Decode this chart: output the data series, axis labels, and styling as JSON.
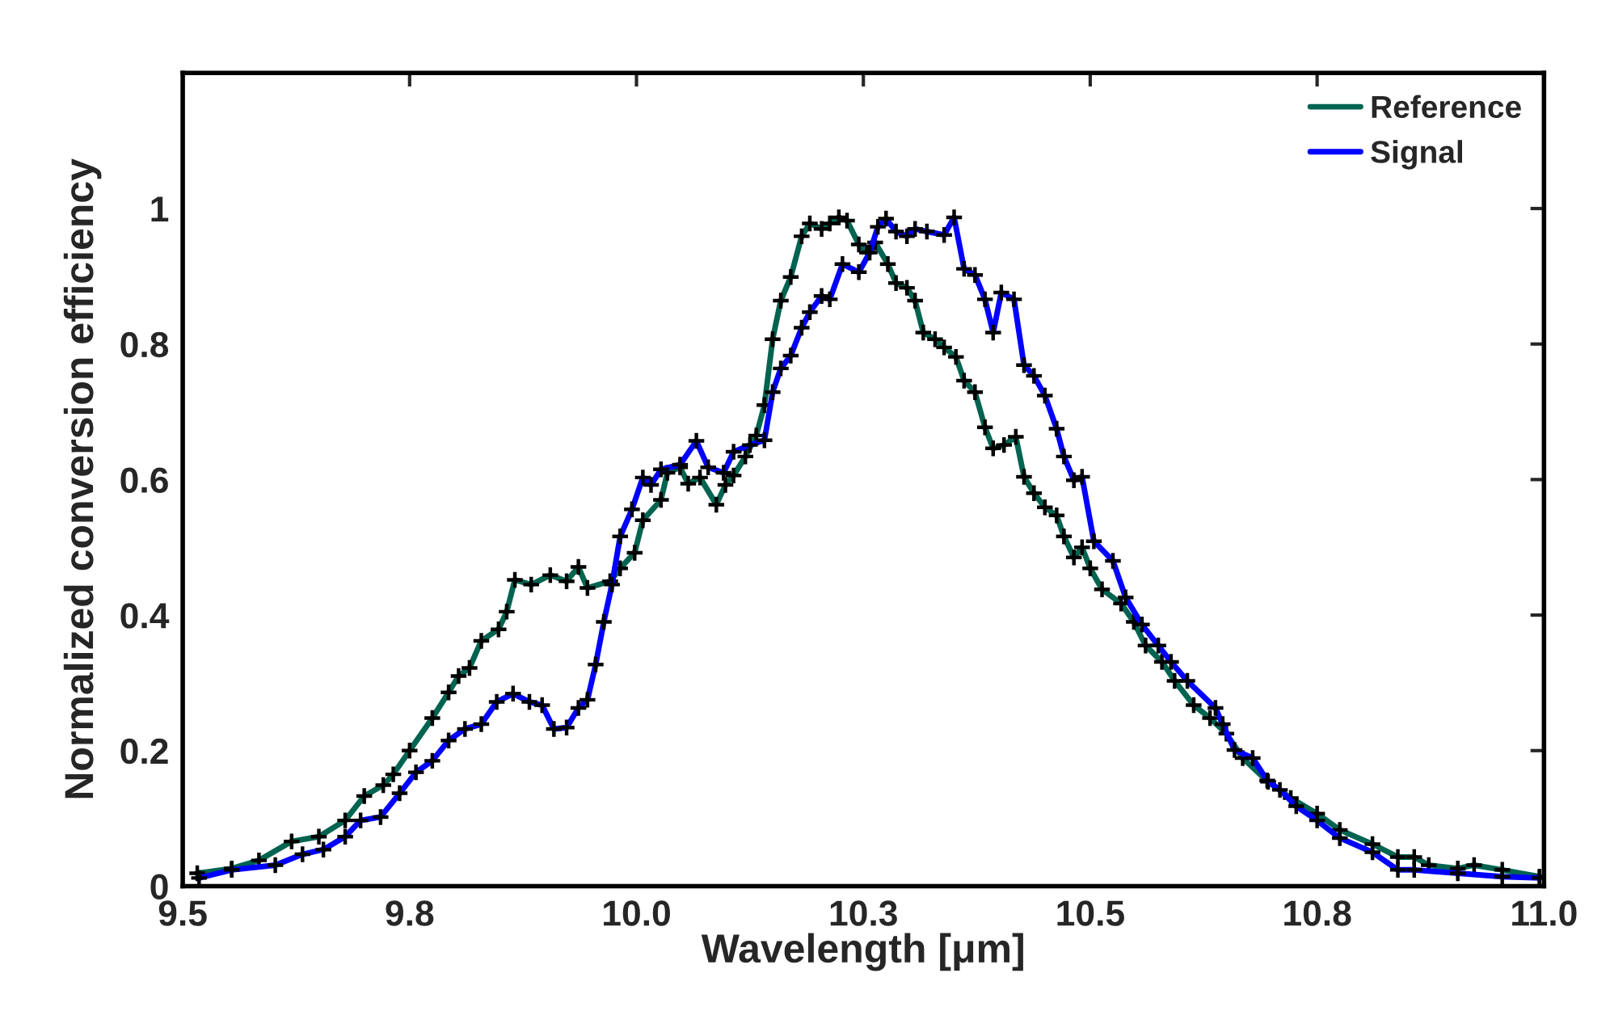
{
  "chart_data": {
    "type": "line",
    "xlabel": "Wavelength [μm]",
    "ylabel": "Normalized conversion efficiency",
    "xlim": [
      9.5,
      11.0
    ],
    "ylim": [
      0,
      1.2
    ],
    "xticks": [
      9.5,
      {
        "value": 9.75,
        "label": "9.8"
      },
      {
        "value": 10.0,
        "label": "10.0"
      },
      {
        "value": 10.25,
        "label": "10.3"
      },
      10.5,
      {
        "value": 10.75,
        "label": "10.8"
      },
      {
        "value": 11.0,
        "label": "11.0"
      }
    ],
    "yticks": [
      0,
      0.2,
      0.4,
      0.6,
      0.8,
      1
    ],
    "grid": false,
    "legend": "top right",
    "marker": "cross",
    "line_style": "solid",
    "series": [
      {
        "name": "Reference",
        "color": "#006450",
        "x": [
          9.516,
          9.554,
          9.584,
          9.62,
          9.65,
          9.679,
          9.7,
          9.721,
          9.732,
          9.75,
          9.775,
          9.793,
          9.804,
          9.816,
          9.829,
          9.848,
          9.857,
          9.866,
          9.884,
          9.905,
          9.923,
          9.936,
          9.946,
          9.971,
          9.982,
          9.998,
          10.007,
          10.027,
          10.034,
          10.048,
          10.057,
          10.07,
          10.088,
          10.098,
          10.107,
          10.12,
          10.132,
          10.141,
          10.15,
          10.159,
          10.17,
          10.182,
          10.191,
          10.204,
          10.213,
          10.223,
          10.232,
          10.245,
          10.254,
          10.263,
          10.277,
          10.286,
          10.298,
          10.307,
          10.316,
          10.329,
          10.339,
          10.352,
          10.361,
          10.373,
          10.384,
          10.393,
          10.405,
          10.418,
          10.427,
          10.438,
          10.45,
          10.463,
          10.471,
          10.482,
          10.491,
          10.5,
          10.513,
          10.534,
          10.548,
          10.561,
          10.579,
          10.593,
          10.614,
          10.632,
          10.65,
          10.668,
          10.696,
          10.721,
          10.75,
          10.775,
          10.811,
          10.839,
          10.857,
          10.873,
          10.905,
          10.923,
          10.954,
          10.995
        ],
        "values": [
          0.019,
          0.026,
          0.038,
          0.066,
          0.073,
          0.097,
          0.133,
          0.149,
          0.165,
          0.2,
          0.248,
          0.286,
          0.31,
          0.322,
          0.362,
          0.379,
          0.405,
          0.452,
          0.445,
          0.459,
          0.45,
          0.471,
          0.44,
          0.45,
          0.469,
          0.492,
          0.54,
          0.57,
          0.61,
          0.618,
          0.594,
          0.603,
          0.563,
          0.592,
          0.606,
          0.634,
          0.665,
          0.71,
          0.807,
          0.864,
          0.899,
          0.959,
          0.978,
          0.97,
          0.978,
          0.987,
          0.982,
          0.947,
          0.935,
          0.95,
          0.918,
          0.89,
          0.883,
          0.864,
          0.817,
          0.807,
          0.795,
          0.781,
          0.746,
          0.729,
          0.677,
          0.646,
          0.651,
          0.663,
          0.604,
          0.58,
          0.559,
          0.547,
          0.516,
          0.485,
          0.5,
          0.469,
          0.438,
          0.417,
          0.39,
          0.355,
          0.331,
          0.303,
          0.267,
          0.248,
          0.225,
          0.189,
          0.154,
          0.13,
          0.107,
          0.083,
          0.062,
          0.043,
          0.043,
          0.031,
          0.026,
          0.031,
          0.024,
          0.014
        ]
      },
      {
        "name": "Signal",
        "color": "#0000ff",
        "x": [
          9.518,
          9.554,
          9.602,
          9.632,
          9.655,
          9.679,
          9.696,
          9.718,
          9.739,
          9.757,
          9.775,
          9.793,
          9.811,
          9.829,
          9.846,
          9.864,
          9.882,
          9.896,
          9.909,
          9.923,
          9.936,
          9.946,
          9.955,
          9.964,
          9.973,
          9.982,
          9.995,
          10.007,
          10.016,
          10.027,
          10.048,
          10.066,
          10.079,
          10.096,
          10.107,
          10.125,
          10.141,
          10.15,
          10.159,
          10.17,
          10.182,
          10.191,
          10.204,
          10.213,
          10.227,
          10.245,
          10.257,
          10.266,
          10.275,
          10.286,
          10.298,
          10.307,
          10.32,
          10.339,
          10.35,
          10.361,
          10.373,
          10.384,
          10.393,
          10.402,
          10.416,
          10.427,
          10.438,
          10.45,
          10.463,
          10.471,
          10.482,
          10.491,
          10.504,
          10.525,
          10.539,
          10.557,
          10.575,
          10.589,
          10.607,
          10.638,
          10.646,
          10.659,
          10.679,
          10.695,
          10.709,
          10.727,
          10.75,
          10.775,
          10.811,
          10.839,
          10.857,
          10.905,
          10.954,
          10.995
        ],
        "values": [
          0.012,
          0.024,
          0.031,
          0.047,
          0.054,
          0.073,
          0.097,
          0.102,
          0.137,
          0.168,
          0.185,
          0.215,
          0.232,
          0.239,
          0.272,
          0.284,
          0.272,
          0.267,
          0.232,
          0.234,
          0.263,
          0.275,
          0.327,
          0.39,
          0.445,
          0.516,
          0.556,
          0.603,
          0.592,
          0.615,
          0.622,
          0.657,
          0.618,
          0.61,
          0.641,
          0.651,
          0.658,
          0.729,
          0.764,
          0.783,
          0.824,
          0.847,
          0.871,
          0.866,
          0.918,
          0.906,
          0.935,
          0.973,
          0.985,
          0.966,
          0.959,
          0.97,
          0.966,
          0.961,
          0.987,
          0.911,
          0.902,
          0.866,
          0.817,
          0.876,
          0.866,
          0.769,
          0.753,
          0.724,
          0.675,
          0.634,
          0.599,
          0.604,
          0.509,
          0.48,
          0.426,
          0.386,
          0.355,
          0.331,
          0.303,
          0.263,
          0.239,
          0.201,
          0.189,
          0.156,
          0.142,
          0.118,
          0.097,
          0.071,
          0.05,
          0.024,
          0.024,
          0.019,
          0.014,
          0.012
        ]
      }
    ]
  }
}
